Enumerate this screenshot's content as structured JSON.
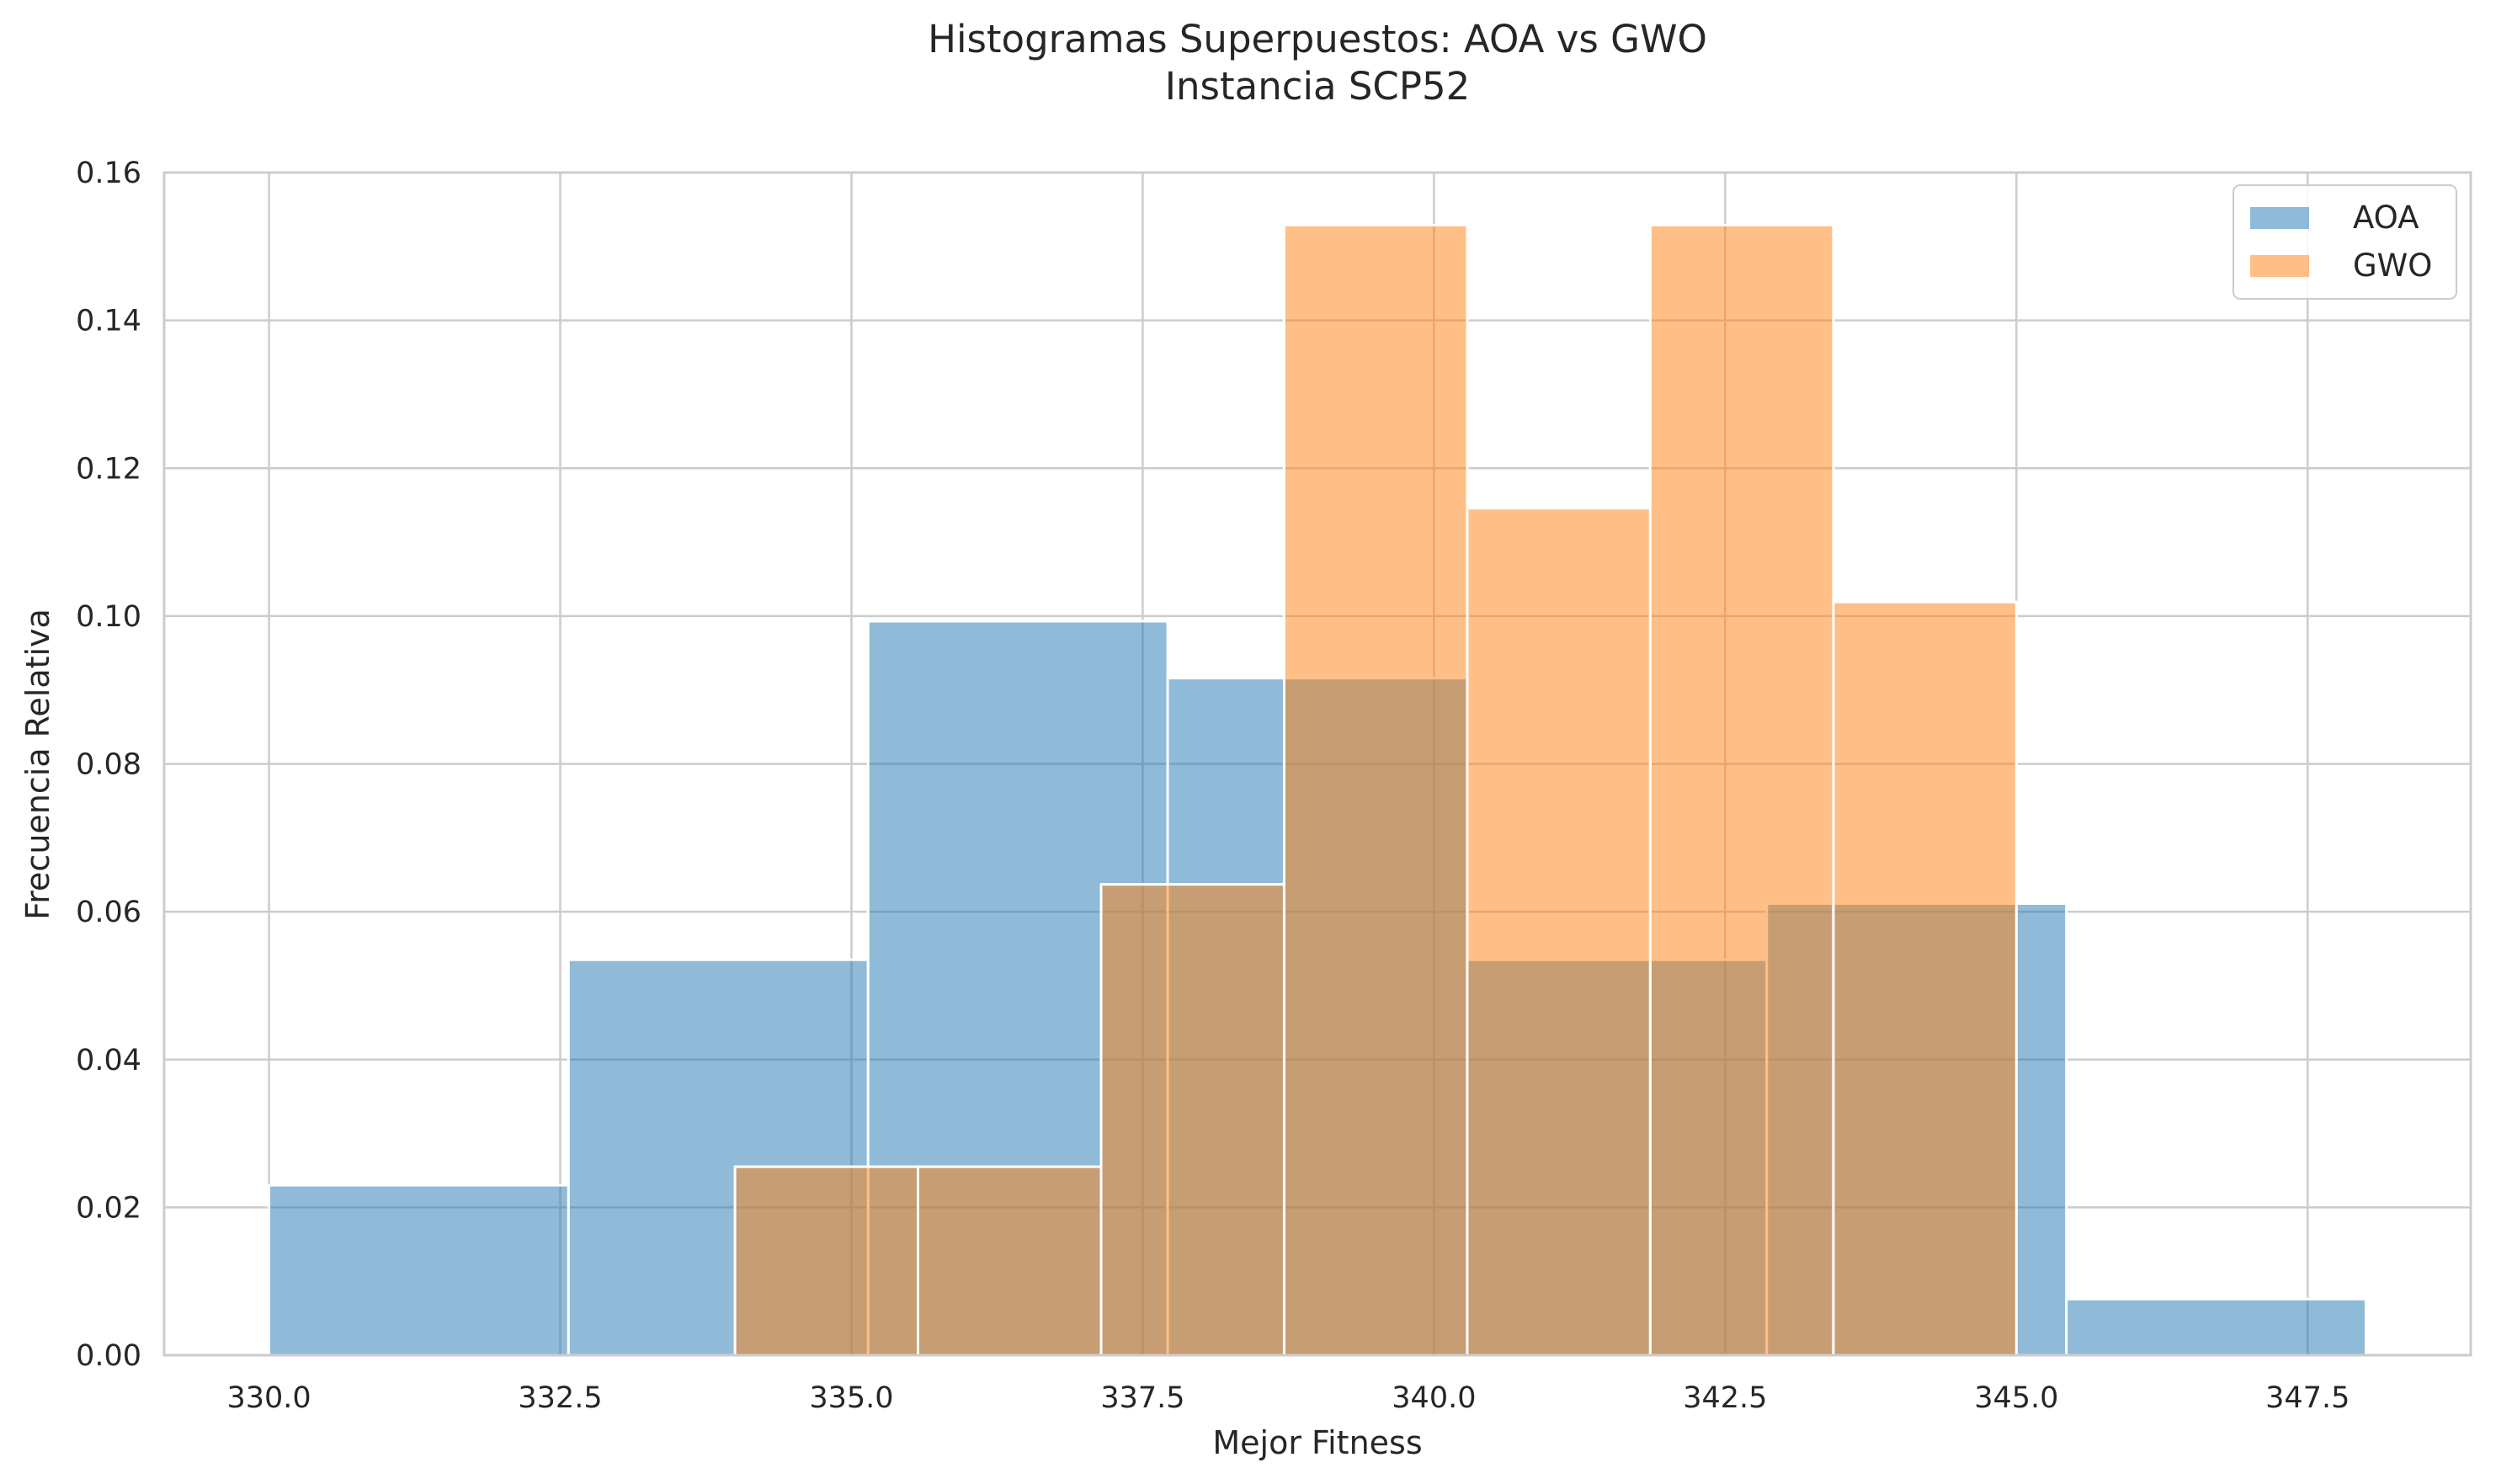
{
  "chart_data": {
    "type": "histogram",
    "title": "Histogramas Superpuestos: AOA vs GWO",
    "subtitle": "Instancia SCP52",
    "xlabel": "Mejor Fitness",
    "ylabel": "Frecuencia Relativa",
    "xlim": [
      329.1,
      348.9
    ],
    "ylim": [
      0,
      0.16
    ],
    "xticks": [
      "330.0",
      "332.5",
      "335.0",
      "337.5",
      "340.0",
      "342.5",
      "345.0",
      "347.5"
    ],
    "yticks": [
      "0.00",
      "0.02",
      "0.04",
      "0.06",
      "0.08",
      "0.10",
      "0.12",
      "0.14",
      "0.16"
    ],
    "grid": true,
    "legend_position": "top-right",
    "series": [
      {
        "name": "AOA",
        "color": "#1f77b4",
        "bins": [
          {
            "x0": 330.0,
            "x1": 332.571,
            "y": 0.023
          },
          {
            "x0": 332.571,
            "x1": 335.143,
            "y": 0.0535
          },
          {
            "x0": 335.143,
            "x1": 337.714,
            "y": 0.0993
          },
          {
            "x0": 337.714,
            "x1": 340.286,
            "y": 0.0916
          },
          {
            "x0": 340.286,
            "x1": 342.857,
            "y": 0.0535
          },
          {
            "x0": 342.857,
            "x1": 345.429,
            "y": 0.0611
          },
          {
            "x0": 345.429,
            "x1": 348.0,
            "y": 0.0076
          }
        ]
      },
      {
        "name": "GWO",
        "color": "#ff7f0e",
        "bins": [
          {
            "x0": 334.0,
            "x1": 335.571,
            "y": 0.0255
          },
          {
            "x0": 335.571,
            "x1": 337.143,
            "y": 0.0255
          },
          {
            "x0": 337.143,
            "x1": 338.714,
            "y": 0.0637
          },
          {
            "x0": 338.714,
            "x1": 340.286,
            "y": 0.1529
          },
          {
            "x0": 340.286,
            "x1": 341.857,
            "y": 0.1146
          },
          {
            "x0": 341.857,
            "x1": 343.429,
            "y": 0.1529
          },
          {
            "x0": 343.429,
            "x1": 345.0,
            "y": 0.1019
          }
        ]
      }
    ]
  }
}
